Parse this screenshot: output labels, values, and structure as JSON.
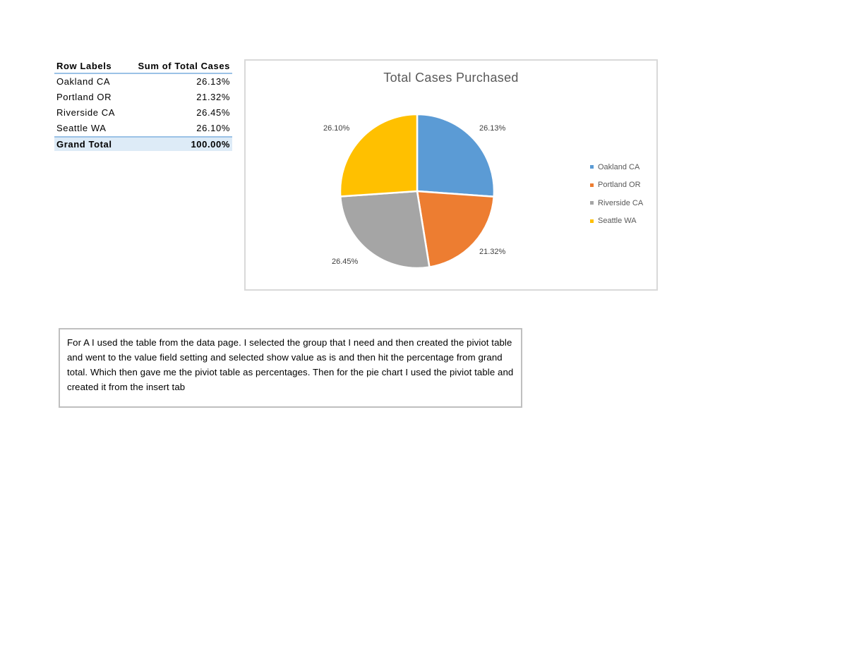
{
  "pivot_table": {
    "headers": [
      "Row Labels",
      "Sum of Total Cases"
    ],
    "rows": [
      {
        "label": "Oakland CA",
        "value": "26.13%"
      },
      {
        "label": "Portland OR",
        "value": "21.32%"
      },
      {
        "label": "Riverside CA",
        "value": "26.45%"
      },
      {
        "label": "Seattle WA",
        "value": "26.10%"
      }
    ],
    "total": {
      "label": "Grand Total",
      "value": "100.00%"
    }
  },
  "chart": {
    "title": "Total Cases Purchased",
    "data_labels": [
      "26.13%",
      "21.32%",
      "26.45%",
      "26.10%"
    ],
    "legend": [
      "Oakland CA",
      "Portland OR",
      "Riverside CA",
      "Seattle WA"
    ],
    "colors": [
      "#5b9bd5",
      "#ed7d31",
      "#a5a5a5",
      "#ffc000"
    ]
  },
  "chart_data": {
    "type": "pie",
    "title": "Total Cases Purchased",
    "categories": [
      "Oakland CA",
      "Portland OR",
      "Riverside CA",
      "Seattle WA"
    ],
    "values": [
      26.13,
      21.32,
      26.45,
      26.1
    ],
    "labels": [
      "26.13%",
      "21.32%",
      "26.45%",
      "26.10%"
    ],
    "colors": [
      "#5b9bd5",
      "#ed7d31",
      "#a5a5a5",
      "#ffc000"
    ],
    "legend_position": "right",
    "start_angle": "12 o'clock, clockwise"
  },
  "note": {
    "text": "For A I used the table from the data page. I selected the group that I need and then created the piviot table and went to the value field setting and selected show value as is and then hit the percentage from grand total. Which then gave me the piviot table as percentages. Then for the pie chart I used the piviot table and created it from the insert tab"
  }
}
